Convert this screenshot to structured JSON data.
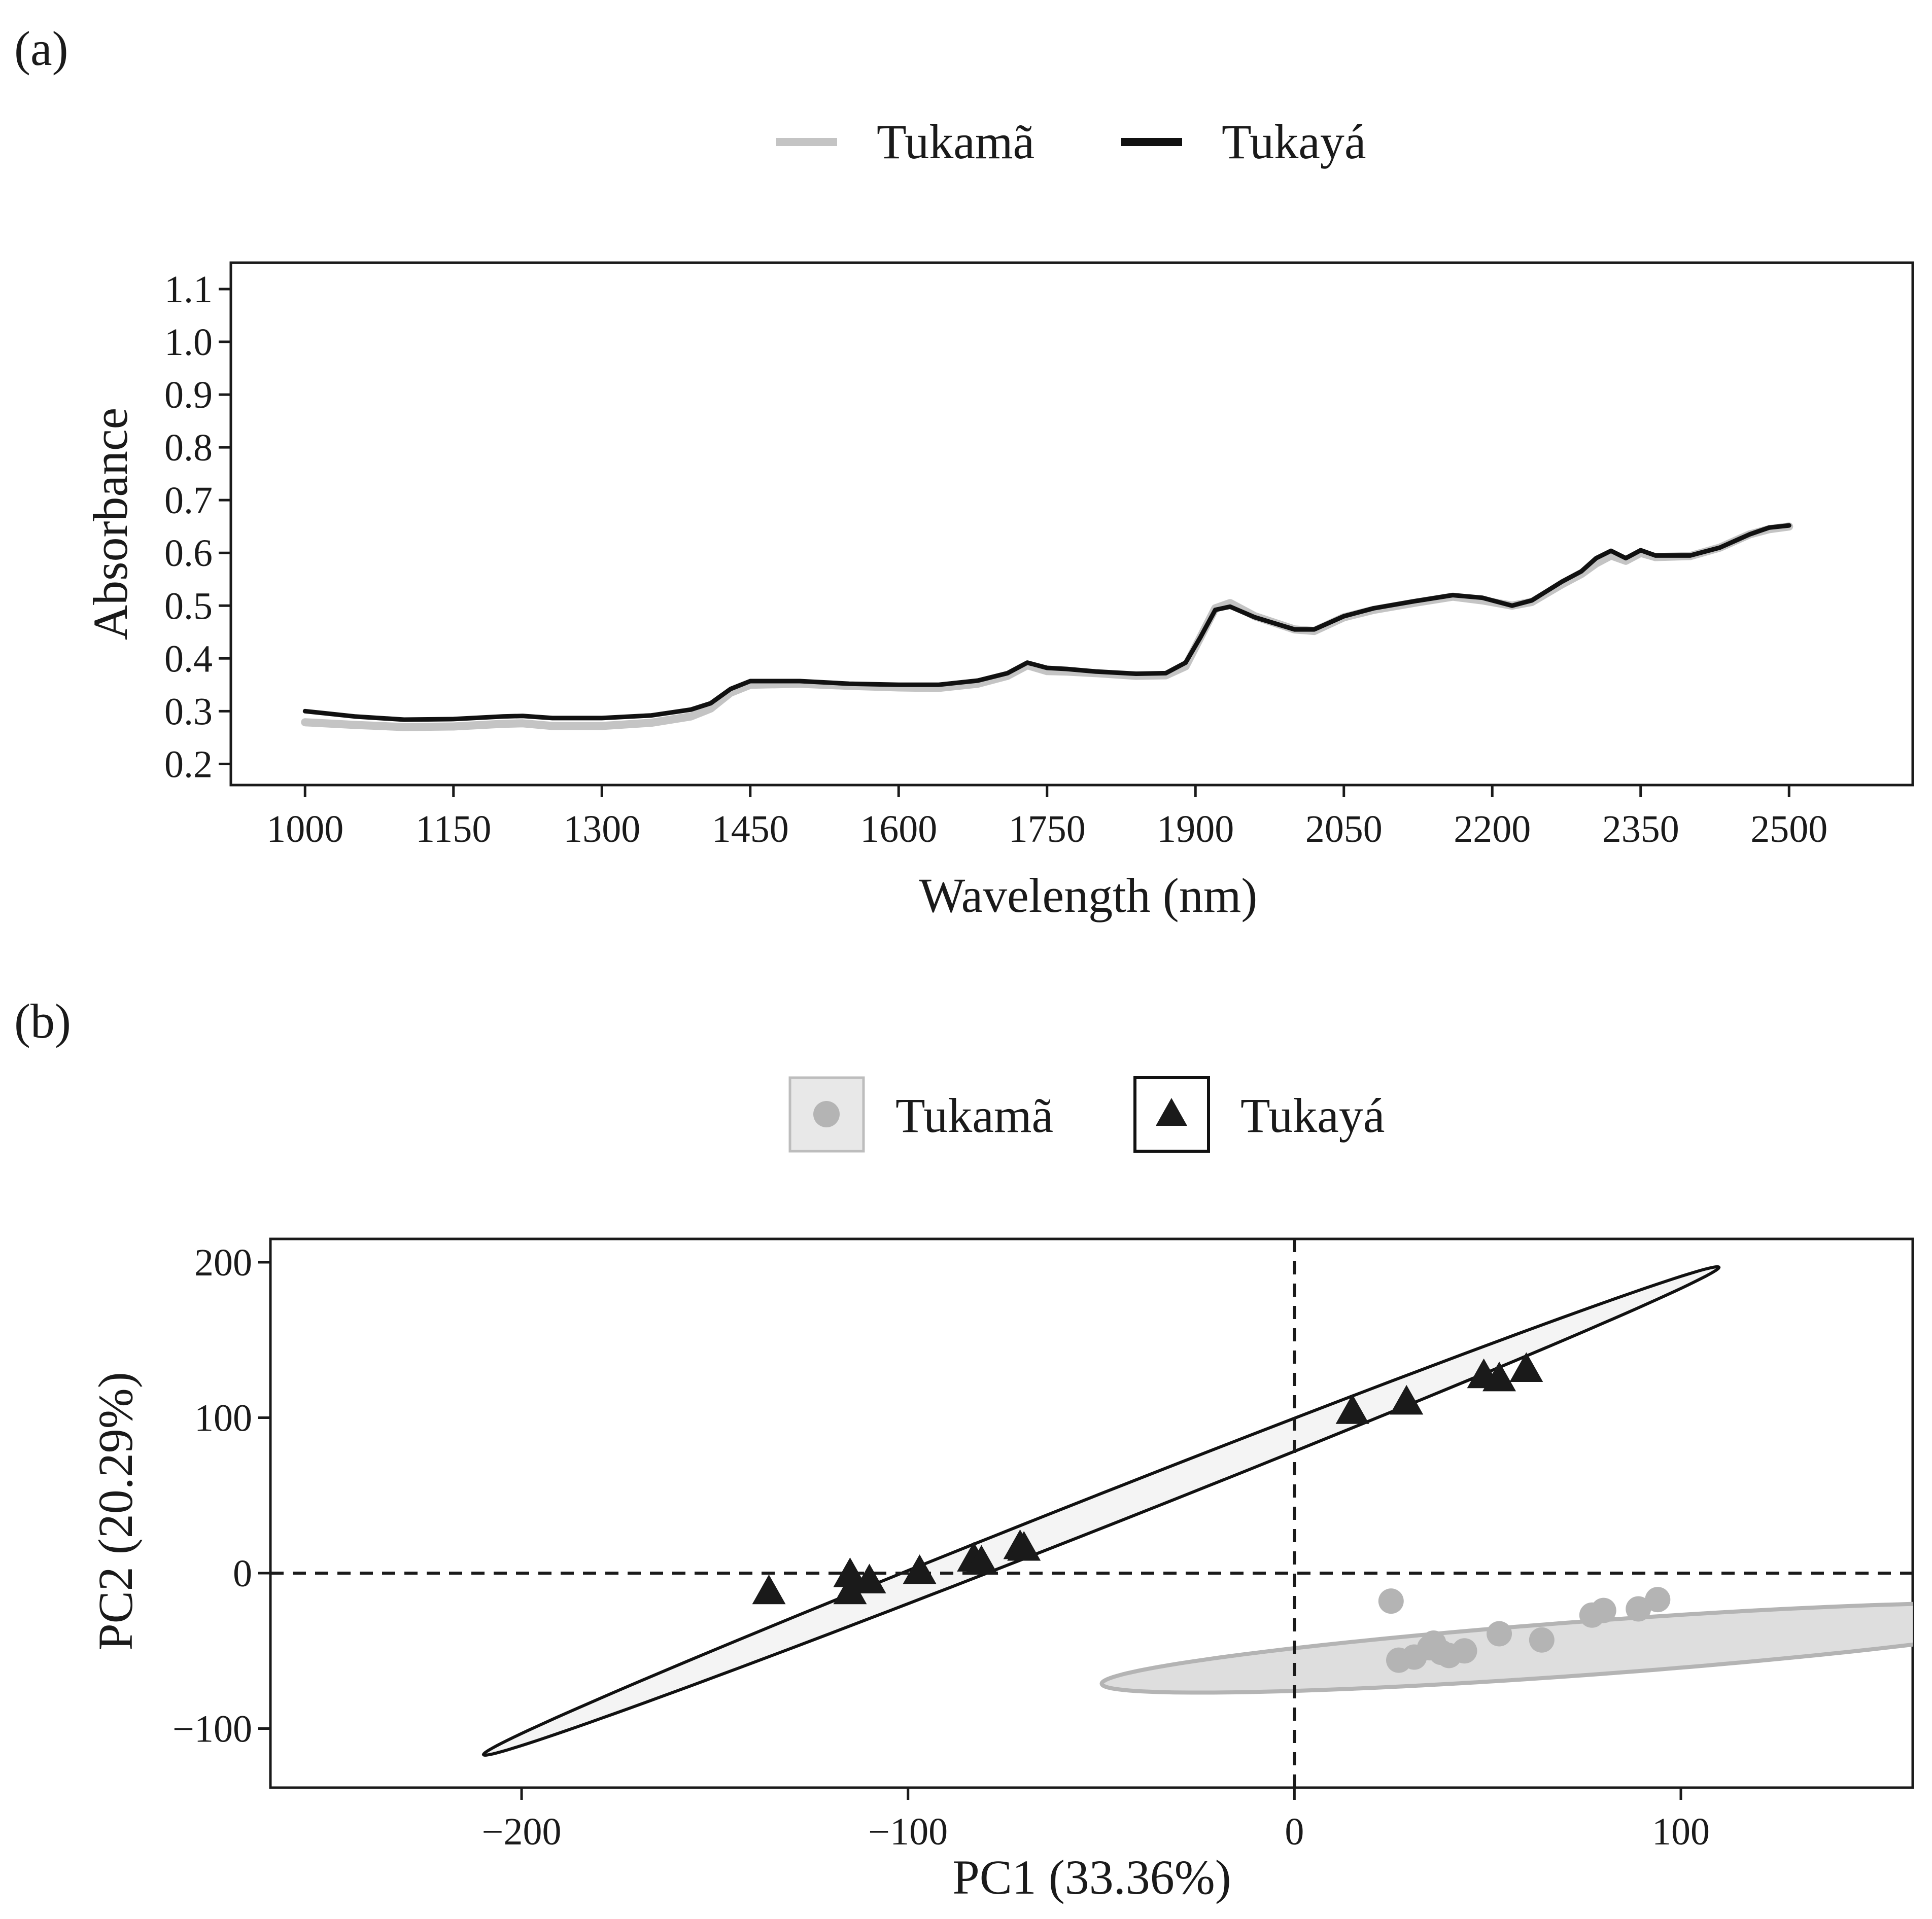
{
  "chart_data": [
    {
      "panel": "(a)",
      "type": "line",
      "xlabel": "Wavelength (nm)",
      "ylabel": "Absorbance",
      "xlim": [
        925,
        2625
      ],
      "ylim": [
        0.16,
        1.15
      ],
      "xticks": [
        1000,
        1150,
        1300,
        1450,
        1600,
        1750,
        1900,
        2050,
        2200,
        2350,
        2500
      ],
      "xtick_labels": [
        "1000",
        "1150",
        "1300",
        "1450",
        "1600",
        "1750",
        "1900",
        "2050",
        "2200",
        "2350",
        "2500"
      ],
      "yticks": [
        0.2,
        0.3,
        0.4,
        0.5,
        0.6,
        0.7,
        0.8,
        0.9,
        1.0,
        1.1
      ],
      "ytick_labels": [
        "0.2",
        "0.3",
        "0.4",
        "0.5",
        "0.6",
        "0.7",
        "0.8",
        "0.9",
        "1.0",
        "1.1"
      ],
      "legend_position": "top",
      "series": [
        {
          "name": "Tukamã",
          "color": "#c4c4c4",
          "points": [
            [
              1000,
              0.279
            ],
            [
              1050,
              0.274
            ],
            [
              1100,
              0.27
            ],
            [
              1150,
              0.271
            ],
            [
              1200,
              0.276
            ],
            [
              1220,
              0.277
            ],
            [
              1250,
              0.272
            ],
            [
              1300,
              0.272
            ],
            [
              1350,
              0.278
            ],
            [
              1390,
              0.29
            ],
            [
              1410,
              0.305
            ],
            [
              1430,
              0.335
            ],
            [
              1450,
              0.35
            ],
            [
              1500,
              0.352
            ],
            [
              1550,
              0.348
            ],
            [
              1600,
              0.345
            ],
            [
              1640,
              0.344
            ],
            [
              1680,
              0.352
            ],
            [
              1710,
              0.367
            ],
            [
              1730,
              0.387
            ],
            [
              1750,
              0.376
            ],
            [
              1770,
              0.375
            ],
            [
              1800,
              0.372
            ],
            [
              1840,
              0.367
            ],
            [
              1870,
              0.368
            ],
            [
              1890,
              0.385
            ],
            [
              1905,
              0.44
            ],
            [
              1920,
              0.495
            ],
            [
              1935,
              0.505
            ],
            [
              1960,
              0.48
            ],
            [
              2000,
              0.455
            ],
            [
              2020,
              0.452
            ],
            [
              2050,
              0.478
            ],
            [
              2080,
              0.492
            ],
            [
              2120,
              0.505
            ],
            [
              2160,
              0.517
            ],
            [
              2190,
              0.51
            ],
            [
              2220,
              0.5
            ],
            [
              2240,
              0.507
            ],
            [
              2270,
              0.54
            ],
            [
              2290,
              0.56
            ],
            [
              2305,
              0.58
            ],
            [
              2320,
              0.595
            ],
            [
              2335,
              0.585
            ],
            [
              2350,
              0.6
            ],
            [
              2365,
              0.592
            ],
            [
              2400,
              0.594
            ],
            [
              2430,
              0.61
            ],
            [
              2460,
              0.635
            ],
            [
              2480,
              0.645
            ],
            [
              2500,
              0.65
            ]
          ]
        },
        {
          "name": "Tukayá",
          "color": "#111111",
          "points": [
            [
              1000,
              0.3
            ],
            [
              1050,
              0.29
            ],
            [
              1100,
              0.284
            ],
            [
              1150,
              0.285
            ],
            [
              1200,
              0.29
            ],
            [
              1220,
              0.291
            ],
            [
              1250,
              0.287
            ],
            [
              1300,
              0.287
            ],
            [
              1350,
              0.292
            ],
            [
              1390,
              0.303
            ],
            [
              1410,
              0.315
            ],
            [
              1430,
              0.342
            ],
            [
              1450,
              0.357
            ],
            [
              1500,
              0.357
            ],
            [
              1550,
              0.352
            ],
            [
              1600,
              0.35
            ],
            [
              1640,
              0.35
            ],
            [
              1680,
              0.358
            ],
            [
              1710,
              0.372
            ],
            [
              1730,
              0.392
            ],
            [
              1750,
              0.382
            ],
            [
              1770,
              0.38
            ],
            [
              1800,
              0.375
            ],
            [
              1840,
              0.371
            ],
            [
              1870,
              0.372
            ],
            [
              1890,
              0.392
            ],
            [
              1905,
              0.44
            ],
            [
              1920,
              0.492
            ],
            [
              1935,
              0.498
            ],
            [
              1960,
              0.478
            ],
            [
              2000,
              0.455
            ],
            [
              2020,
              0.455
            ],
            [
              2050,
              0.48
            ],
            [
              2080,
              0.495
            ],
            [
              2120,
              0.508
            ],
            [
              2160,
              0.52
            ],
            [
              2190,
              0.515
            ],
            [
              2220,
              0.5
            ],
            [
              2240,
              0.51
            ],
            [
              2270,
              0.545
            ],
            [
              2290,
              0.565
            ],
            [
              2305,
              0.59
            ],
            [
              2320,
              0.604
            ],
            [
              2335,
              0.59
            ],
            [
              2350,
              0.605
            ],
            [
              2365,
              0.595
            ],
            [
              2400,
              0.595
            ],
            [
              2430,
              0.61
            ],
            [
              2460,
              0.635
            ],
            [
              2480,
              0.648
            ],
            [
              2500,
              0.652
            ]
          ]
        }
      ]
    },
    {
      "panel": "(b)",
      "type": "scatter",
      "xlabel": "PC1 (33.36%)",
      "ylabel": "PC2 (20.29%)",
      "xlim": [
        -265,
        160
      ],
      "ylim": [
        -138,
        215
      ],
      "xticks": [
        -200,
        -100,
        0,
        100
      ],
      "xtick_labels": [
        "−200",
        "−100",
        "0",
        "100"
      ],
      "yticks": [
        -100,
        0,
        100,
        200
      ],
      "ytick_labels": [
        "−100",
        "0",
        "100",
        "200"
      ],
      "reference_lines": {
        "x": 0,
        "y": 0
      },
      "legend_position": "top",
      "series": [
        {
          "name": "Tukamã",
          "marker": "circle",
          "color": "#b4b4b4",
          "ellipse_fill": "#dedede",
          "ellipse_stroke": "#b4b4b4",
          "ellipse": {
            "cx": 77,
            "cy": -48,
            "rx": 129,
            "ry": 17,
            "angle_deg": 10.5
          },
          "points": [
            [
              25,
              -18
            ],
            [
              27,
              -56
            ],
            [
              31,
              -54
            ],
            [
              35,
              -48
            ],
            [
              36,
              -45
            ],
            [
              38,
              -51
            ],
            [
              40,
              -53
            ],
            [
              44,
              -50
            ],
            [
              53,
              -39
            ],
            [
              64,
              -43
            ],
            [
              77,
              -27
            ],
            [
              80,
              -24
            ],
            [
              89,
              -23
            ],
            [
              94,
              -17
            ]
          ]
        },
        {
          "name": "Tukayá",
          "marker": "triangle",
          "color": "#1a1a1a",
          "ellipse_fill": "#f4f4f4",
          "ellipse_stroke": "#111111",
          "ellipse": {
            "cx": -50,
            "cy": 40,
            "rx": 224,
            "ry": 8,
            "angle_deg": 44.5
          },
          "points": [
            [
              -136,
              -12
            ],
            [
              -115,
              -12
            ],
            [
              -115,
              -1
            ],
            [
              -110,
              -5
            ],
            [
              -97,
              1
            ],
            [
              -83,
              9
            ],
            [
              -81,
              7
            ],
            [
              -71,
              17
            ],
            [
              -70,
              16
            ],
            [
              15,
              104
            ],
            [
              29,
              110
            ],
            [
              49,
              127
            ],
            [
              53,
              125
            ],
            [
              60,
              131
            ]
          ]
        }
      ]
    }
  ]
}
